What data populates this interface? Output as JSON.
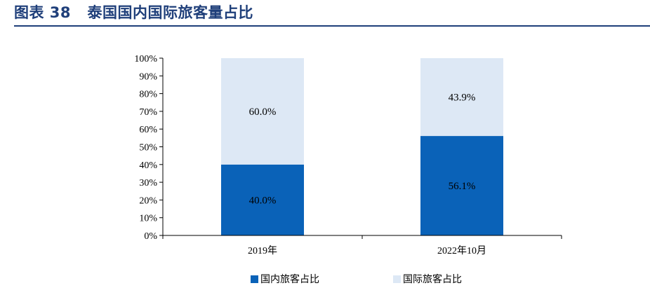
{
  "header": {
    "title": "图表 38   泰国国内国际旅客量占比"
  },
  "chart_data": {
    "type": "bar",
    "stacked": true,
    "categories": [
      "2019年",
      "2022年10月"
    ],
    "series": [
      {
        "name": "国内旅客占比",
        "values": [
          40.0,
          56.1
        ],
        "labels": [
          "40.0%",
          "56.1%"
        ],
        "color": "#0a62b8"
      },
      {
        "name": "国际旅客占比",
        "values": [
          60.0,
          43.9
        ],
        "labels": [
          "60.0%",
          "43.9%"
        ],
        "color": "#dde8f5"
      }
    ],
    "ylim": [
      0,
      100
    ],
    "yticks": [
      "0%",
      "10%",
      "20%",
      "30%",
      "40%",
      "50%",
      "60%",
      "70%",
      "80%",
      "90%",
      "100%"
    ],
    "grid": false,
    "legend_position": "bottom"
  }
}
